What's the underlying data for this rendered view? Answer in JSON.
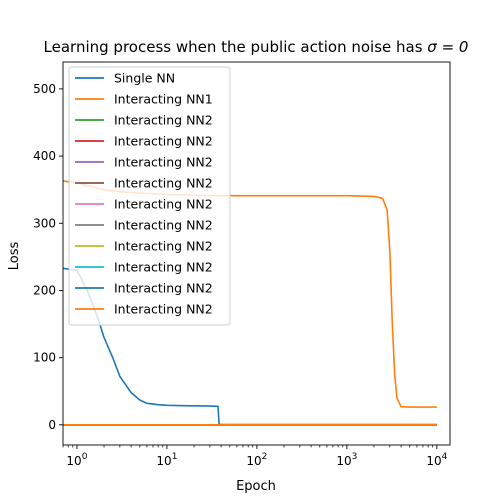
{
  "chart_data": {
    "type": "line",
    "title_prefix": "Learning process when the public action noise has ",
    "title_math": "σ = 0",
    "xlabel": "Epoch",
    "ylabel": "Loss",
    "xscale": "log",
    "xlim": [
      0.7,
      14000
    ],
    "ylim": [
      -30,
      540
    ],
    "xticks": [
      {
        "value": 1,
        "base": "10",
        "exp": "0"
      },
      {
        "value": 10,
        "base": "10",
        "exp": "1"
      },
      {
        "value": 100,
        "base": "10",
        "exp": "2"
      },
      {
        "value": 1000,
        "base": "10",
        "exp": "3"
      },
      {
        "value": 10000,
        "base": "10",
        "exp": "4"
      }
    ],
    "yticks": [
      0,
      100,
      200,
      300,
      400,
      500
    ],
    "grid": false,
    "legend_position": "upper left",
    "series": [
      {
        "name": "Single NN",
        "color": "#1f77b4",
        "x": [
          0.7,
          1,
          1.3,
          1.7,
          2,
          2.5,
          3,
          4,
          5,
          6,
          8,
          10,
          15,
          20,
          30,
          37,
          38,
          40,
          100,
          1000,
          10000
        ],
        "y": [
          233,
          230,
          200,
          160,
          130,
          100,
          72,
          48,
          37,
          32,
          30,
          29,
          28.5,
          28.3,
          28,
          27.5,
          1,
          0.5,
          0.5,
          0.5,
          0.5
        ]
      },
      {
        "name": "Interacting NN1",
        "color": "#ff7f0e",
        "x": [
          0.7,
          1,
          1.5,
          2,
          3,
          5,
          10,
          30,
          100,
          300,
          1000,
          2000,
          2500,
          2800,
          3000,
          3200,
          3400,
          3600,
          4000,
          5000,
          10000
        ],
        "y": [
          363,
          360,
          354,
          350,
          347,
          345,
          343,
          341,
          341,
          341,
          341,
          340,
          337,
          320,
          260,
          150,
          75,
          40,
          27,
          26.5,
          26.5
        ]
      },
      {
        "name": "Interacting NN2",
        "color": "#2ca02c",
        "x": [
          0.7,
          10000
        ],
        "y": [
          0,
          0
        ]
      },
      {
        "name": "Interacting NN2",
        "color": "#d62728",
        "x": [
          0.7,
          10000
        ],
        "y": [
          0,
          0
        ]
      },
      {
        "name": "Interacting NN2",
        "color": "#9467bd",
        "x": [
          0.7,
          10000
        ],
        "y": [
          0,
          0
        ]
      },
      {
        "name": "Interacting NN2",
        "color": "#8c564b",
        "x": [
          0.7,
          10000
        ],
        "y": [
          0,
          0
        ]
      },
      {
        "name": "Interacting NN2",
        "color": "#e377c2",
        "x": [
          0.7,
          10000
        ],
        "y": [
          0,
          0
        ]
      },
      {
        "name": "Interacting NN2",
        "color": "#7f7f7f",
        "x": [
          0.7,
          10000
        ],
        "y": [
          0,
          0
        ]
      },
      {
        "name": "Interacting NN2",
        "color": "#bcbd22",
        "x": [
          0.7,
          10000
        ],
        "y": [
          0,
          0
        ]
      },
      {
        "name": "Interacting NN2",
        "color": "#17becf",
        "x": [
          0.7,
          10000
        ],
        "y": [
          0,
          0
        ]
      },
      {
        "name": "Interacting NN2",
        "color": "#1f77b4",
        "x": [
          0.7,
          10000
        ],
        "y": [
          0,
          0
        ]
      },
      {
        "name": "Interacting NN2",
        "color": "#ff7f0e",
        "x": [
          0.7,
          10000
        ],
        "y": [
          0,
          0
        ]
      }
    ]
  }
}
